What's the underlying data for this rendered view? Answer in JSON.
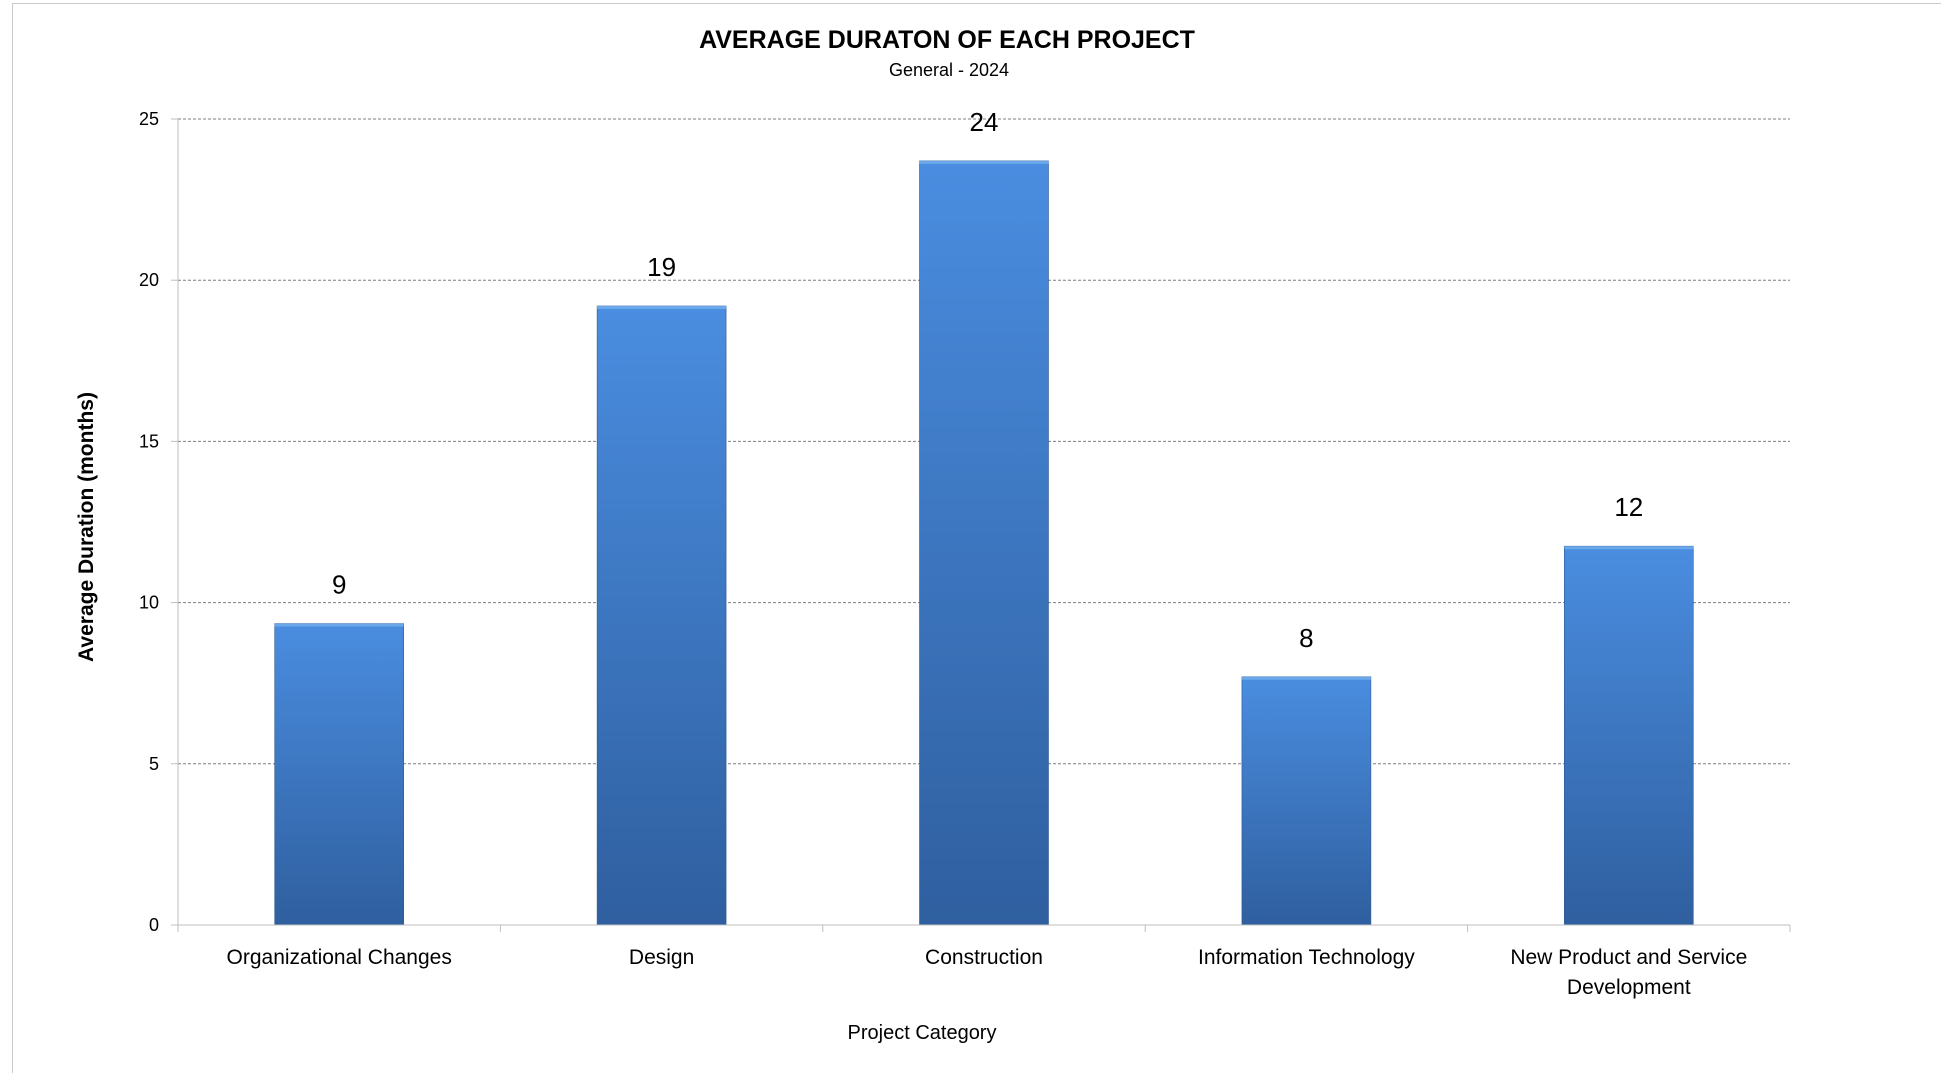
{
  "chart_data": {
    "type": "bar",
    "title": "AVERAGE DURATON OF EACH PROJECT",
    "subtitle": "General - 2024",
    "xlabel": "Project Category",
    "ylabel": "Average Duration (months)",
    "categories": [
      [
        "Organizational Changes"
      ],
      [
        "Design"
      ],
      [
        "Construction"
      ],
      [
        "Information Technology"
      ],
      [
        "New Product and Service",
        "Development"
      ]
    ],
    "values": [
      9.35,
      19.2,
      23.7,
      7.7,
      11.75
    ],
    "data_labels": [
      "9",
      "19",
      "24",
      "8",
      "12"
    ],
    "ylim": [
      0,
      25
    ],
    "yticks": [
      0,
      5,
      10,
      15,
      20,
      25
    ],
    "grid": true,
    "legend": "none",
    "colors": {
      "bar_top": "#4a8de0",
      "bar_bottom": "#2f5f9f",
      "bar_cap": "#6aa8ea",
      "grid": "#7f7f7f",
      "axis": "#bfbfbf"
    }
  }
}
